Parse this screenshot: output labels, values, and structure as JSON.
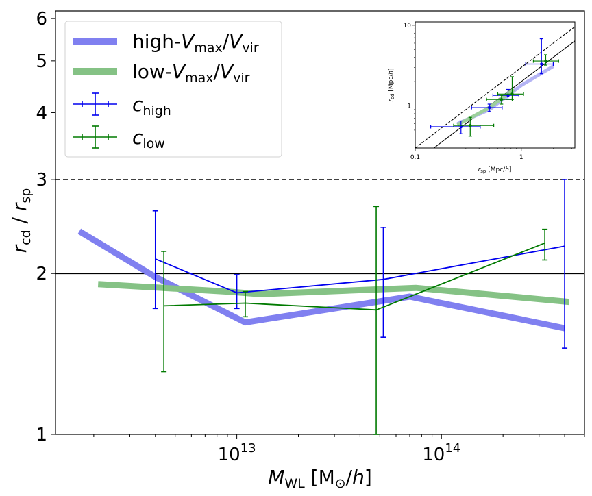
{
  "chart_data": [
    {
      "type": "line",
      "title": "",
      "xlabel": "M_WL [M⊙/h]",
      "ylabel": "r_cd / r_sp",
      "x_scale": "log",
      "y_scale": "log",
      "xlim": [
        1300000000000.0,
        500000000000000.0
      ],
      "ylim": [
        1,
        6.2
      ],
      "x_tick_labels": [
        {
          "value": 10000000000000.0,
          "base": "10",
          "exp": "13"
        },
        {
          "value": 100000000000000.0,
          "base": "10",
          "exp": "14"
        }
      ],
      "y_ticks": [
        1,
        2,
        3,
        4,
        5,
        6
      ],
      "y_tick_labels": [
        "1",
        "2",
        "3",
        "4",
        "5",
        "6"
      ],
      "x_label_parts": {
        "sym": "M",
        "sub": "WL",
        "unit_open": " [M",
        "sun": "⊙",
        "unit_close": "/",
        "h": "h",
        "end": "]"
      },
      "y_label_parts": {
        "num": "r",
        "num_sub": "cd",
        "slash": " / ",
        "den": "r",
        "den_sub": "sp"
      },
      "reference_lines": [
        {
          "y": 3,
          "style": "dashed",
          "color": "#000000"
        },
        {
          "y": 2,
          "style": "solid",
          "color": "#000000"
        }
      ],
      "series": [
        {
          "name": "high-Vmax/Vvir",
          "kind": "band",
          "color": "#8080f0",
          "x": [
            1700000000000.0,
            4000000000000.0,
            11000000000000.0,
            70000000000000.0,
            400000000000000.0
          ],
          "y": [
            2.4,
            1.97,
            1.62,
            1.81,
            1.58
          ]
        },
        {
          "name": "low-Vmax/Vvir",
          "kind": "band",
          "color": "#85c285",
          "x": [
            2100000000000.0,
            9000000000000.0,
            13000000000000.0,
            75000000000000.0,
            420000000000000.0
          ],
          "y": [
            1.91,
            1.85,
            1.83,
            1.88,
            1.77
          ]
        },
        {
          "name": "c_high",
          "kind": "errorbar",
          "color": "#0000ee",
          "x": [
            4000000000000.0,
            10000000000000.0,
            52000000000000.0,
            400000000000000.0
          ],
          "y": [
            2.13,
            1.84,
            1.95,
            2.25
          ],
          "y_low": [
            1.72,
            1.72,
            1.52,
            1.45
          ],
          "y_high": [
            2.62,
            1.99,
            2.44,
            3.0
          ]
        },
        {
          "name": "c_low",
          "kind": "errorbar",
          "color": "#007a00",
          "x": [
            4400000000000.0,
            11000000000000.0,
            48000000000000.0,
            320000000000000.0
          ],
          "y": [
            1.74,
            1.76,
            1.71,
            2.28
          ],
          "y_low": [
            1.31,
            1.66,
            1.0,
            2.12
          ],
          "y_high": [
            2.2,
            1.85,
            2.67,
            2.42
          ]
        }
      ],
      "legend": {
        "position": "top-left",
        "entries": [
          {
            "prefix": "high-",
            "t1": "V",
            "s1": "max",
            "mid": "/",
            "t2": "V",
            "s2": "vir"
          },
          {
            "prefix": "low-",
            "t1": "V",
            "s1": "max",
            "mid": "/",
            "t2": "V",
            "s2": "vir"
          },
          {
            "prefix": "",
            "t1": "c",
            "s1": "high",
            "mid": "",
            "t2": "",
            "s2": ""
          },
          {
            "prefix": "",
            "t1": "c",
            "s1": "low",
            "mid": "",
            "t2": "",
            "s2": ""
          }
        ]
      }
    },
    {
      "type": "scatter",
      "title": "",
      "position": "inset top-right",
      "xlabel": "r_sp [Mpc/h]",
      "ylabel": "r_cd [Mpc/h]",
      "x_scale": "log",
      "y_scale": "log",
      "xlim": [
        0.1,
        3.2
      ],
      "ylim": [
        0.3,
        11
      ],
      "x_tick_labels": [
        "0.1",
        "1"
      ],
      "y_tick_labels": [
        "1",
        "10"
      ],
      "x_label_parts": {
        "sym": "r",
        "sub": "sp",
        "unit": " [Mpc/",
        "h": "h",
        "end": "]"
      },
      "y_label_parts": {
        "sym": "r",
        "sub": "cd",
        "unit": " [Mpc/",
        "h": "h",
        "end": "]"
      },
      "reference_lines": [
        {
          "relation": "y = 3x",
          "style": "dashed",
          "color": "#000000"
        },
        {
          "relation": "y = 2x",
          "style": "solid",
          "color": "#000000"
        }
      ],
      "series": [
        {
          "name": "high-Vmax/Vvir",
          "kind": "band",
          "color": "#b4b4f4",
          "x": [
            0.25,
            0.5,
            1.0,
            2.0
          ],
          "y": [
            0.6,
            0.9,
            1.8,
            3.1
          ]
        },
        {
          "name": "low-Vmax/Vvir",
          "kind": "band",
          "color": "#9ccf9c",
          "x": [
            0.25,
            0.5,
            0.85
          ],
          "y": [
            0.58,
            0.95,
            1.6
          ]
        },
        {
          "name": "c_high",
          "kind": "errorbar",
          "color": "#0000ee",
          "x": [
            0.27,
            0.5,
            0.75,
            1.55
          ],
          "y": [
            0.55,
            0.95,
            1.35,
            3.3
          ],
          "x_low": [
            0.14,
            0.34,
            0.54,
            1.1
          ],
          "x_high": [
            0.41,
            0.66,
            0.95,
            2.0
          ],
          "y_low": [
            0.45,
            0.85,
            1.2,
            2.5
          ],
          "y_high": [
            0.65,
            1.05,
            1.6,
            6.8
          ]
        },
        {
          "name": "c_low",
          "kind": "errorbar",
          "color": "#007a00",
          "x": [
            0.33,
            0.65,
            0.82,
            1.7
          ],
          "y": [
            0.57,
            1.2,
            1.4,
            3.6
          ],
          "x_low": [
            0.23,
            0.47,
            0.6,
            1.3
          ],
          "x_high": [
            0.55,
            0.82,
            1.05,
            2.25
          ],
          "y_low": [
            0.42,
            1.05,
            1.2,
            3.2
          ],
          "y_high": [
            0.72,
            1.35,
            2.3,
            4.3
          ]
        }
      ]
    }
  ]
}
